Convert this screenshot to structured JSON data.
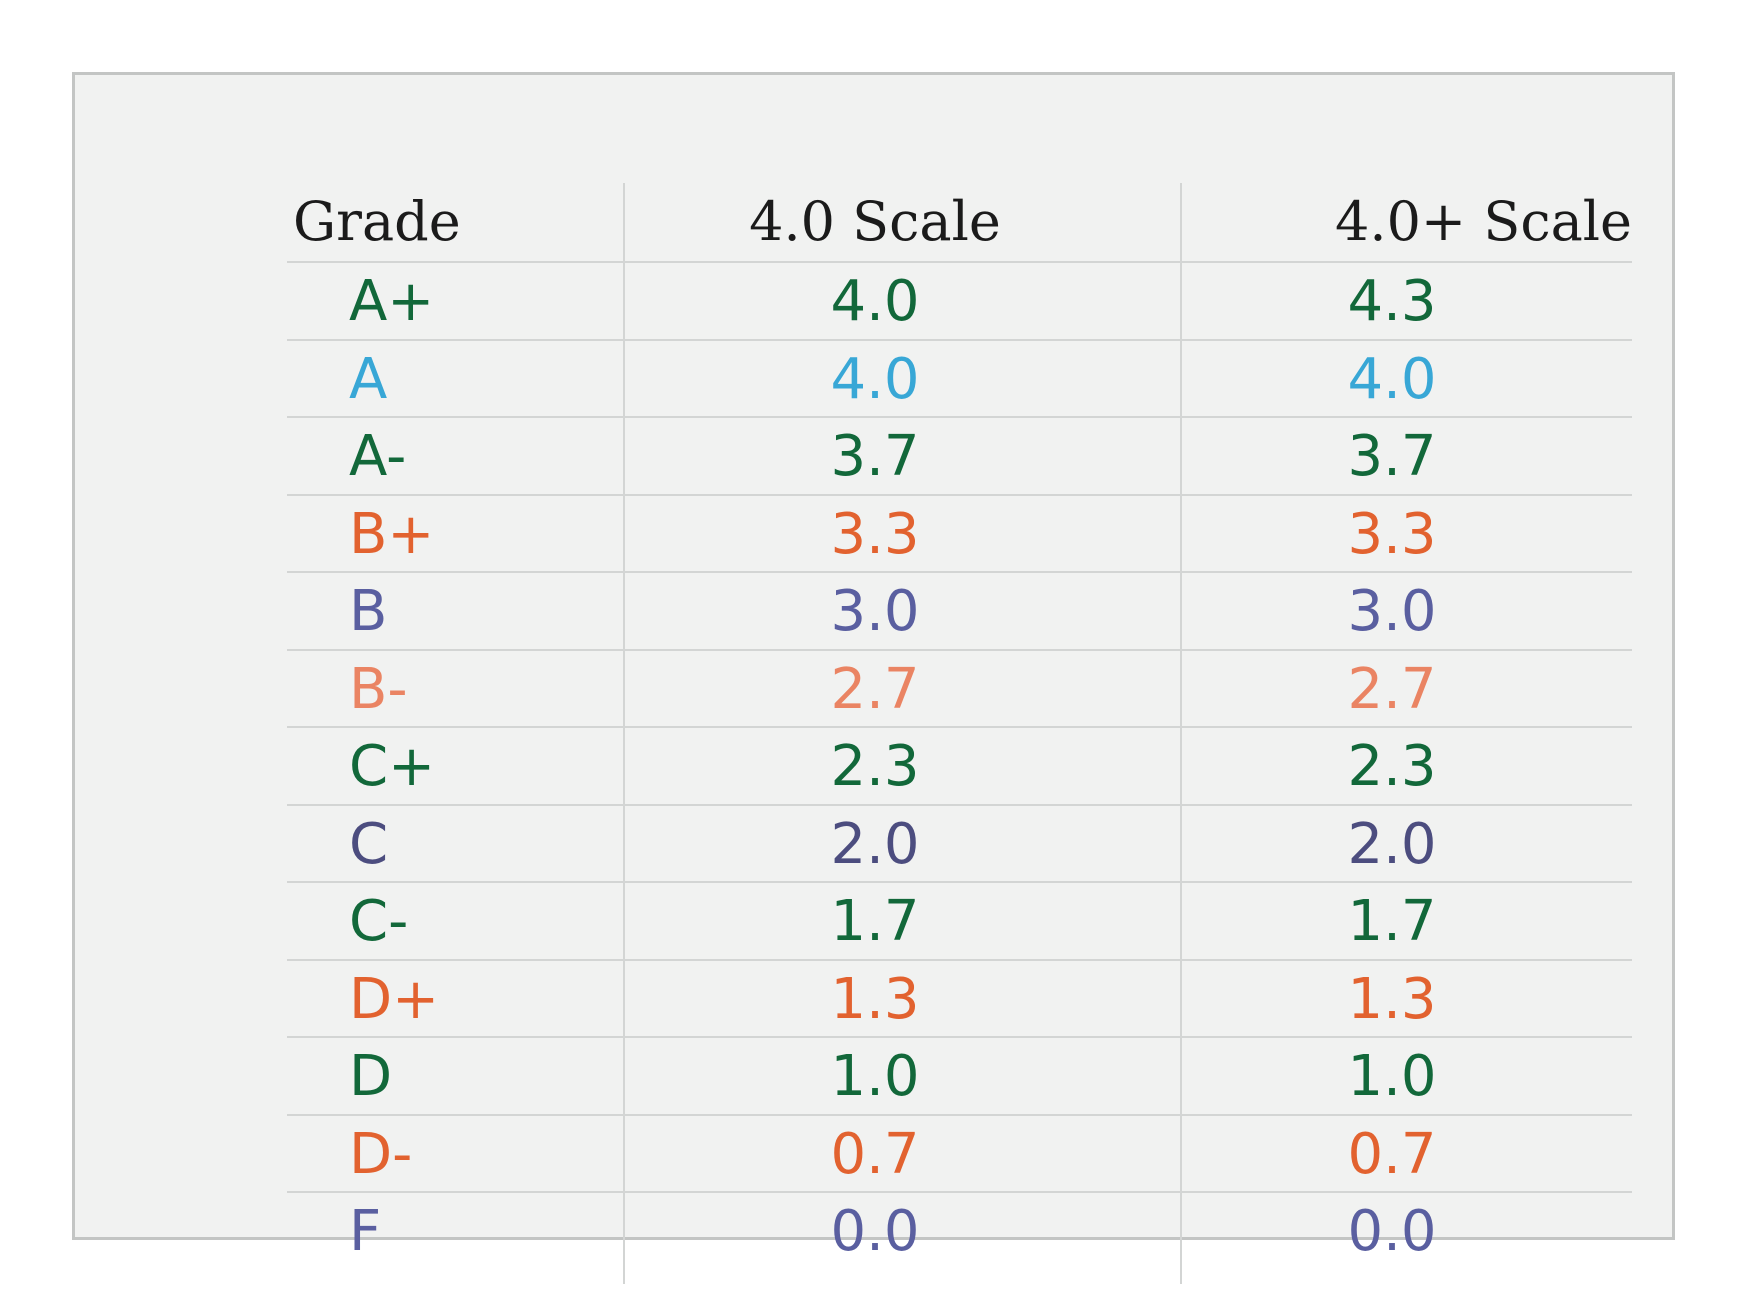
{
  "table": {
    "headers": {
      "grade": "Grade",
      "scale_4": "4.0 Scale",
      "scale_4_plus": "4.0+ Scale"
    },
    "rows": [
      {
        "grade": "A+",
        "scale_4": "4.0",
        "scale_4_plus": "4.3",
        "color": "#12683a"
      },
      {
        "grade": "A",
        "scale_4": "4.0",
        "scale_4_plus": "4.0",
        "color": "#38a7d6"
      },
      {
        "grade": "A-",
        "scale_4": "3.7",
        "scale_4_plus": "3.7",
        "color": "#12683a"
      },
      {
        "grade": "B+",
        "scale_4": "3.3",
        "scale_4_plus": "3.3",
        "color": "#e2622f"
      },
      {
        "grade": "B",
        "scale_4": "3.0",
        "scale_4_plus": "3.0",
        "color": "#5a5fa0"
      },
      {
        "grade": "B-",
        "scale_4": "2.7",
        "scale_4_plus": "2.7",
        "color": "#ea8463"
      },
      {
        "grade": "C+",
        "scale_4": "2.3",
        "scale_4_plus": "2.3",
        "color": "#12683a"
      },
      {
        "grade": "C",
        "scale_4": "2.0",
        "scale_4_plus": "2.0",
        "color": "#4c4d7f"
      },
      {
        "grade": "C-",
        "scale_4": "1.7",
        "scale_4_plus": "1.7",
        "color": "#12683a"
      },
      {
        "grade": "D+",
        "scale_4": "1.3",
        "scale_4_plus": "1.3",
        "color": "#e2622f"
      },
      {
        "grade": "D",
        "scale_4": "1.0",
        "scale_4_plus": "1.0",
        "color": "#12683a"
      },
      {
        "grade": "D-",
        "scale_4": "0.7",
        "scale_4_plus": "0.7",
        "color": "#e2622f"
      },
      {
        "grade": "F",
        "scale_4": "0.0",
        "scale_4_plus": "0.0",
        "color": "#5a5fa0"
      }
    ]
  }
}
